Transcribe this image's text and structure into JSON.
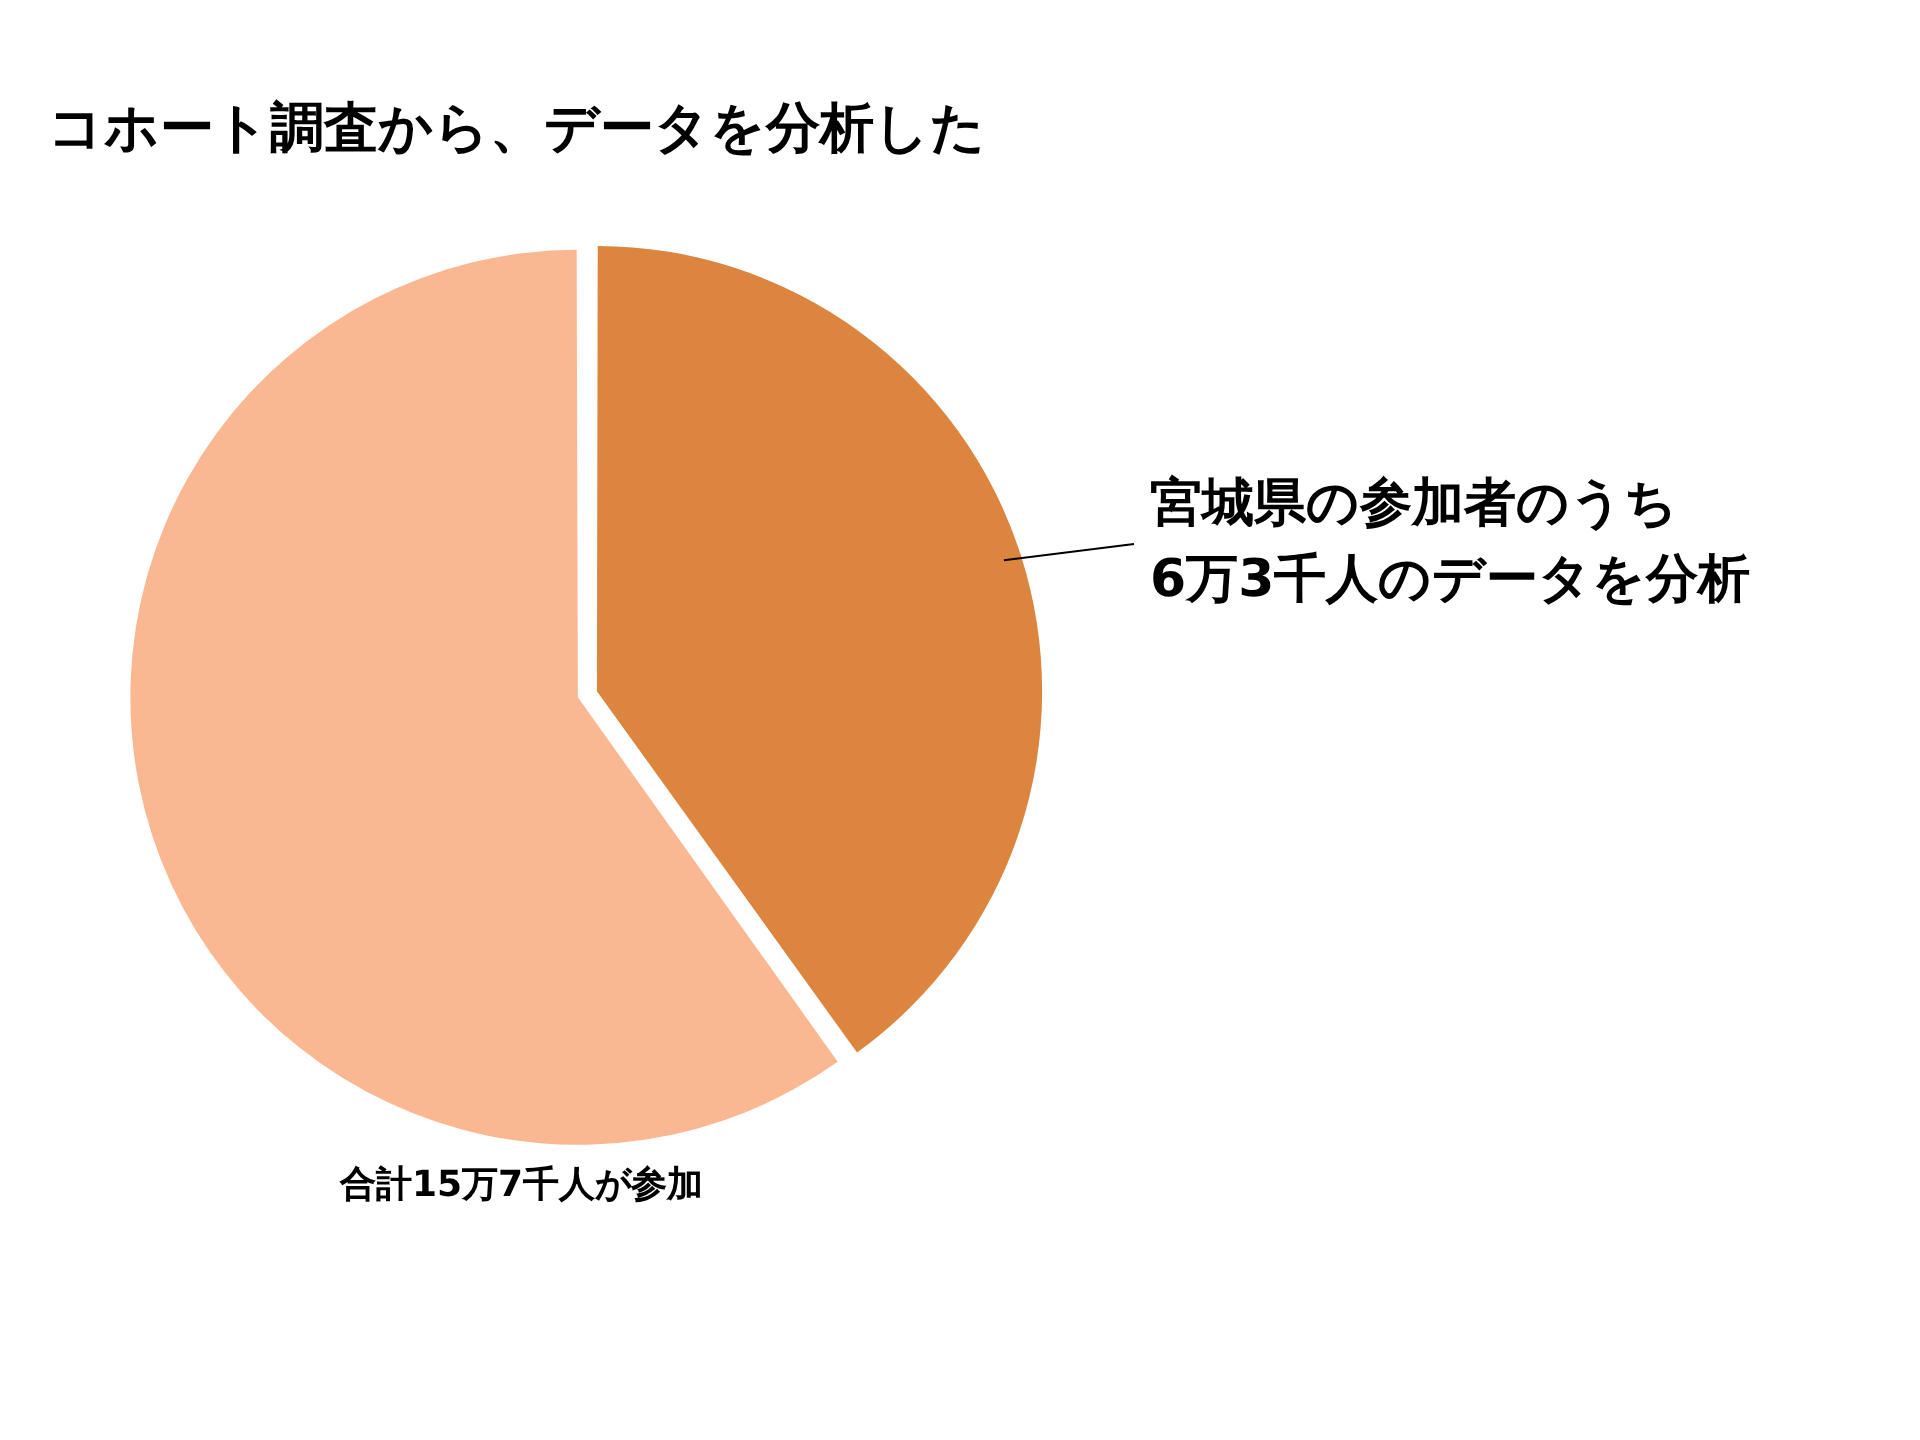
{
  "chart_data": {
    "type": "pie",
    "title": "コホート調査から、データを分析した",
    "categories": [
      "宮城県の参加者のうち\n6万3千人のデータを分析",
      null
    ],
    "values": [
      40.1,
      59.9
    ],
    "colors": [
      "#dc853f",
      "#f9b792"
    ],
    "legend": false,
    "annotations": [
      "合計15万7千人が参加"
    ]
  }
}
